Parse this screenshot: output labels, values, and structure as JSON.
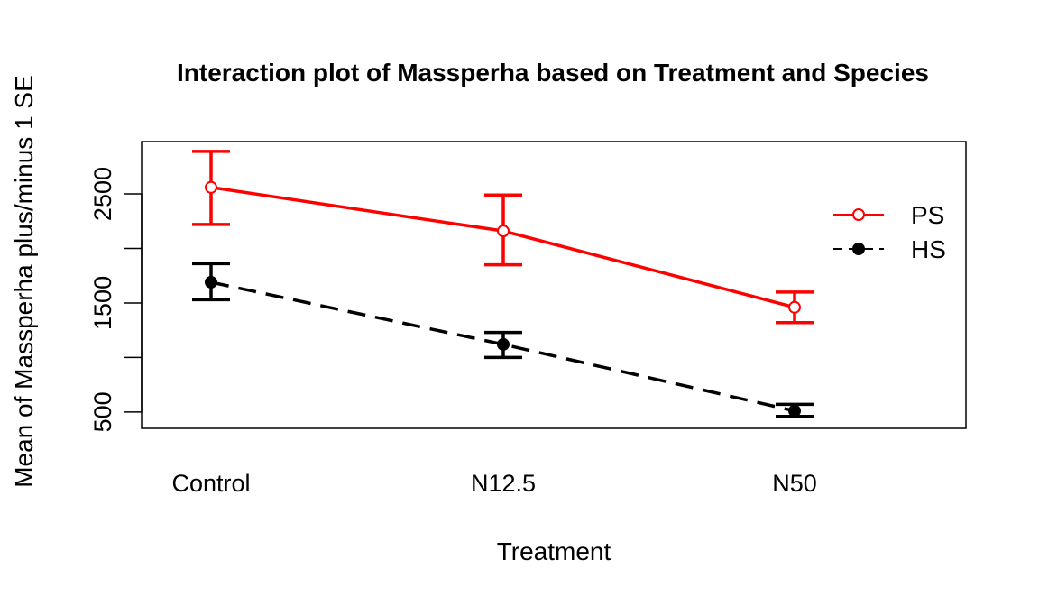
{
  "chart_data": {
    "type": "line",
    "title": "Interaction plot of Massperha based on Treatment and Species",
    "xlabel": "Treatment",
    "ylabel": "Mean of  Massperha plus/minus 1 SE",
    "categories": [
      "Control",
      "N12.5",
      "N50"
    ],
    "y_ticks": [
      500,
      1500,
      2500
    ],
    "ylim": [
      350,
      2980
    ],
    "legend_position": "top-right",
    "series": [
      {
        "name": "PS",
        "color": "#ff0000",
        "line_style": "solid",
        "marker": "open-circle",
        "values": [
          2560,
          2160,
          1460
        ],
        "error_low": [
          2220,
          1850,
          1320
        ],
        "error_high": [
          2890,
          2490,
          1600
        ]
      },
      {
        "name": "HS",
        "color": "#000000",
        "line_style": "dashed",
        "marker": "filled-circle",
        "values": [
          1690,
          1120,
          510
        ],
        "error_low": [
          1530,
          1000,
          460
        ],
        "error_high": [
          1860,
          1230,
          570
        ]
      }
    ]
  }
}
